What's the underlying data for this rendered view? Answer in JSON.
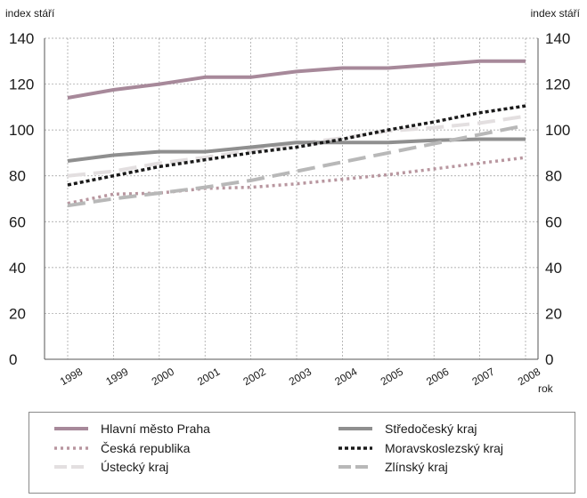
{
  "chart_data": {
    "type": "line",
    "y_axis_title_left": "index stáří",
    "y_axis_title_right": "index stáří",
    "x_axis_unit": "rok",
    "categories": [
      "1998",
      "1999",
      "2000",
      "2001",
      "2002",
      "2003",
      "2004",
      "2005",
      "2006",
      "2007",
      "2008"
    ],
    "y_ticks": [
      "0",
      "20",
      "40",
      "60",
      "80",
      "100",
      "120",
      "140"
    ],
    "ylim": [
      0,
      140
    ],
    "grid": true,
    "legend_position": "bottom",
    "series": [
      {
        "name": "Hlavní město Praha",
        "color": "#a7899a",
        "dash": "solid",
        "width": 4,
        "values": [
          114,
          117.5,
          120,
          123,
          123,
          125.5,
          127,
          127,
          128.5,
          130,
          130
        ]
      },
      {
        "name": "Česká republika",
        "color": "#b8969f",
        "dash": "dots",
        "width": 3.5,
        "values": [
          68,
          72,
          72.5,
          74.5,
          75,
          76.5,
          78.5,
          80.5,
          83,
          85.5,
          88
        ]
      },
      {
        "name": "Ústecký kraj",
        "color": "#e3dfe0",
        "dash": "long-dash",
        "width": 4,
        "values": [
          80,
          82,
          85.5,
          88,
          91,
          94,
          96.5,
          99.5,
          101,
          103,
          106
        ]
      },
      {
        "name": "Středočeský kraj",
        "color": "#8f8f8f",
        "dash": "solid",
        "width": 4,
        "values": [
          86.5,
          89,
          90.5,
          90.5,
          92.5,
          94.5,
          94.5,
          94.5,
          95.5,
          96,
          96
        ]
      },
      {
        "name": "Moravskoslezský kraj",
        "color": "#1a1a1a",
        "dash": "short-dash",
        "width": 3.5,
        "values": [
          76,
          80,
          84,
          87,
          90,
          92.5,
          96,
          100,
          103.5,
          107.5,
          110.5
        ]
      },
      {
        "name": "Zlínský kraj",
        "color": "#b8b8b8",
        "dash": "long-dash",
        "width": 4,
        "values": [
          67,
          70,
          72.5,
          75,
          78,
          82,
          86,
          90,
          94,
          98,
          102
        ]
      }
    ]
  }
}
